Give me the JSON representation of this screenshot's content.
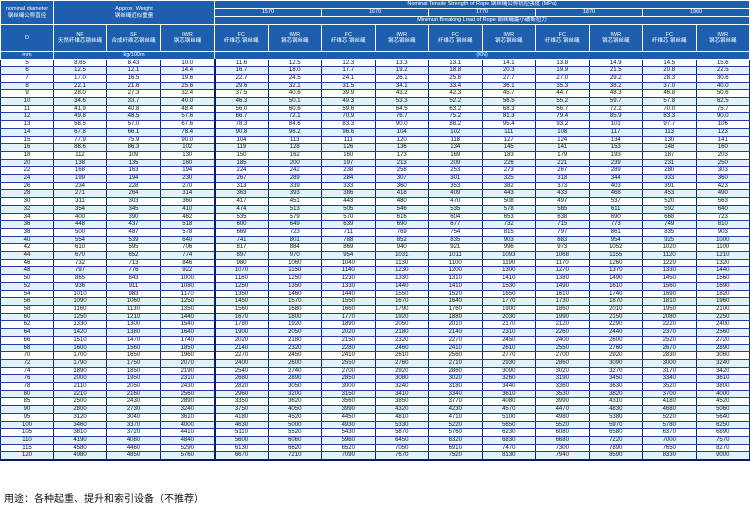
{
  "header": {
    "diameter": {
      "en": "nominal diameter",
      "cn": "钢丝绳公称直径",
      "symbol": "D",
      "unit": "mm"
    },
    "weight": {
      "en": "Approx. Weight",
      "cn": "钢丝绳近似重量",
      "unit": "kg/100m",
      "cols": [
        {
          "code": "NF",
          "cn": "天然纤维芯钢丝绳"
        },
        {
          "code": "SF",
          "cn": "合成纤维芯钢丝绳"
        },
        {
          "code": "IWR",
          "cn": "钢芯钢丝绳"
        }
      ]
    },
    "strength": {
      "title": "Nominal Tensile Strength of Rope 钢丝绳公称抗拉强度 (MPa)",
      "grades": [
        "1570",
        "1670",
        "1770",
        "1870",
        "1960"
      ],
      "load_title": "Minimun Breaking Load of Rope 钢丝绳最小破断拉力",
      "unit": "(KN)",
      "fc": {
        "code": "FC",
        "cn": "纤维芯 钢丝绳"
      },
      "iwr": {
        "code": "IWR",
        "cn": "钢芯钢丝绳"
      }
    }
  },
  "colors": {
    "header_bg": "#1d5fae",
    "row_alt": "#e3f1fb",
    "grid": "#0a2a8a"
  },
  "rows": [
    [
      "5",
      "8.65",
      "8.43",
      "10.0",
      "11.6",
      "12.5",
      "12.3",
      "13.3",
      "13.1",
      "14.1",
      "13.8",
      "14.9",
      "14.5",
      "15.6"
    ],
    [
      "6",
      "12.5",
      "12.1",
      "14.4",
      "16.7",
      "18.0",
      "17.7",
      "19.2",
      "18.8",
      "20.3",
      "19.9",
      "21.5",
      "20.8",
      "22.5"
    ],
    [
      "7",
      "17.0",
      "16.5",
      "19.6",
      "22.7",
      "24.5",
      "24.1",
      "26.1",
      "25.6",
      "27.7",
      "27.0",
      "29.2",
      "28.3",
      "30.6"
    ],
    [
      "8",
      "22.1",
      "21.6",
      "25.6",
      "29.6",
      "32.1",
      "31.5",
      "34.1",
      "33.4",
      "36.1",
      "35.3",
      "38.2",
      "37.0",
      "40.0"
    ],
    [
      "9",
      "28.0",
      "27.3",
      "32.4",
      "37.5",
      "40.6",
      "39.9",
      "43.2",
      "42.3",
      "45.7",
      "44.7",
      "48.3",
      "46.8",
      "50.6"
    ],
    [
      "10",
      "34.6",
      "33.7",
      "40.0",
      "46.3",
      "50.1",
      "49.3",
      "53.3",
      "52.2",
      "56.5",
      "55.2",
      "59.7",
      "57.8",
      "62.5"
    ],
    [
      "11",
      "41.9",
      "40.8",
      "48.4",
      "56.0",
      "60.6",
      "59.6",
      "64.5",
      "63.2",
      "68.3",
      "66.7",
      "72.2",
      "70.0",
      "75.7"
    ],
    [
      "12",
      "49.8",
      "48.5",
      "57.6",
      "66.7",
      "72.1",
      "70.9",
      "76.7",
      "75.2",
      "81.3",
      "79.4",
      "85.9",
      "83.3",
      "90.0"
    ],
    [
      "13",
      "58.5",
      "57.0",
      "67.6",
      "78.3",
      "84.6",
      "83.3",
      "90.0",
      "88.2",
      "95.4",
      "93.2",
      "101",
      "97.7",
      "106"
    ],
    [
      "14",
      "67.8",
      "66.1",
      "78.4",
      "90.8",
      "98.2",
      "96.6",
      "104",
      "102",
      "111",
      "108",
      "117",
      "113",
      "123"
    ],
    [
      "15",
      "77.9",
      "75.9",
      "90.0",
      "104",
      "113",
      "111",
      "120",
      "118",
      "127",
      "124",
      "134",
      "130",
      "141"
    ],
    [
      "16",
      "88.6",
      "86.3",
      "102",
      "119",
      "128",
      "126",
      "136",
      "134",
      "145",
      "141",
      "153",
      "148",
      "160"
    ],
    [
      "18",
      "112",
      "109",
      "130",
      "150",
      "162",
      "160",
      "173",
      "169",
      "183",
      "179",
      "193",
      "187",
      "203"
    ],
    [
      "20",
      "138",
      "135",
      "160",
      "185",
      "200",
      "197",
      "213",
      "209",
      "226",
      "221",
      "239",
      "231",
      "250"
    ],
    [
      "22",
      "168",
      "163",
      "194",
      "224",
      "242",
      "238",
      "258",
      "253",
      "273",
      "267",
      "289",
      "280",
      "303"
    ],
    [
      "24",
      "199",
      "194",
      "230",
      "267",
      "289",
      "284",
      "307",
      "301",
      "325",
      "318",
      "344",
      "333",
      "360"
    ],
    [
      "26",
      "234",
      "228",
      "270",
      "313",
      "339",
      "333",
      "360",
      "353",
      "382",
      "373",
      "403",
      "391",
      "423"
    ],
    [
      "28",
      "271",
      "264",
      "314",
      "363",
      "393",
      "386",
      "418",
      "409",
      "443",
      "433",
      "468",
      "453",
      "490"
    ],
    [
      "30",
      "311",
      "303",
      "360",
      "417",
      "451",
      "443",
      "480",
      "470",
      "508",
      "497",
      "537",
      "520",
      "563"
    ],
    [
      "32",
      "354",
      "345",
      "410",
      "474",
      "513",
      "505",
      "546",
      "535",
      "578",
      "565",
      "611",
      "592",
      "640"
    ],
    [
      "34",
      "400",
      "390",
      "462",
      "535",
      "579",
      "570",
      "616",
      "604",
      "653",
      "638",
      "690",
      "668",
      "723"
    ],
    [
      "36",
      "448",
      "437",
      "518",
      "600",
      "649",
      "639",
      "690",
      "677",
      "732",
      "715",
      "773",
      "749",
      "810"
    ],
    [
      "38",
      "500",
      "487",
      "578",
      "669",
      "723",
      "711",
      "769",
      "754",
      "815",
      "797",
      "861",
      "835",
      "903"
    ],
    [
      "40",
      "554",
      "539",
      "640",
      "741",
      "801",
      "788",
      "852",
      "835",
      "903",
      "883",
      "954",
      "925",
      "1000"
    ],
    [
      "42",
      "610",
      "595",
      "706",
      "817",
      "884",
      "869",
      "940",
      "921",
      "996",
      "973",
      "1052",
      "1020",
      "1100"
    ],
    [
      "44",
      "670",
      "652",
      "774",
      "897",
      "970",
      "954",
      "1031",
      "1011",
      "1093",
      "1068",
      "1155",
      "1120",
      "1210"
    ],
    [
      "46",
      "732",
      "713",
      "846",
      "980",
      "1060",
      "1040",
      "1130",
      "1100",
      "1190",
      "1170",
      "1260",
      "1220",
      "1320"
    ],
    [
      "48",
      "797",
      "776",
      "922",
      "1070",
      "1150",
      "1140",
      "1230",
      "1200",
      "1300",
      "1270",
      "1370",
      "1330",
      "1440"
    ],
    [
      "50",
      "865",
      "843",
      "1000",
      "1160",
      "1250",
      "1230",
      "1330",
      "1310",
      "1410",
      "1380",
      "1490",
      "1450",
      "1560"
    ],
    [
      "52",
      "936",
      "911",
      "1080",
      "1250",
      "1350",
      "1330",
      "1440",
      "1410",
      "1530",
      "1490",
      "1610",
      "1560",
      "1690"
    ],
    [
      "54",
      "1010",
      "983",
      "1170",
      "1350",
      "1460",
      "1440",
      "1550",
      "1520",
      "1650",
      "1610",
      "1740",
      "1690",
      "1820"
    ],
    [
      "56",
      "1090",
      "1060",
      "1250",
      "1450",
      "1570",
      "1550",
      "1670",
      "1640",
      "1770",
      "1730",
      "1870",
      "1810",
      "1960"
    ],
    [
      "58",
      "1160",
      "1130",
      "1350",
      "1560",
      "1680",
      "1660",
      "1790",
      "1760",
      "1900",
      "1860",
      "2010",
      "1950",
      "2100"
    ],
    [
      "60",
      "1250",
      "1210",
      "1440",
      "1670",
      "1800",
      "1770",
      "1920",
      "1880",
      "2030",
      "1990",
      "2150",
      "2080",
      "2250"
    ],
    [
      "62",
      "1330",
      "1300",
      "1540",
      "1780",
      "1920",
      "1890",
      "2050",
      "2010",
      "2170",
      "2120",
      "2290",
      "2220",
      "2400"
    ],
    [
      "64",
      "1420",
      "1380",
      "1640",
      "1900",
      "2050",
      "2020",
      "2180",
      "2140",
      "2310",
      "2260",
      "2440",
      "2370",
      "2560"
    ],
    [
      "66",
      "1510",
      "1470",
      "1740",
      "2020",
      "2180",
      "2150",
      "2320",
      "2270",
      "2450",
      "2400",
      "2600",
      "2520",
      "2720"
    ],
    [
      "68",
      "1600",
      "1560",
      "1850",
      "2140",
      "2320",
      "2280",
      "2460",
      "2410",
      "2610",
      "2550",
      "2760",
      "2670",
      "2890"
    ],
    [
      "70",
      "1700",
      "1650",
      "1960",
      "2270",
      "2450",
      "2410",
      "2610",
      "2560",
      "2770",
      "2700",
      "2920",
      "2830",
      "3060"
    ],
    [
      "72",
      "1790",
      "1750",
      "2070",
      "2400",
      "2600",
      "2550",
      "2760",
      "2710",
      "2930",
      "2860",
      "3090",
      "3000",
      "3240"
    ],
    [
      "74",
      "1890",
      "1850",
      "2190",
      "2540",
      "2740",
      "2700",
      "2920",
      "2860",
      "3090",
      "3020",
      "3270",
      "3170",
      "3420"
    ],
    [
      "76",
      "2000",
      "1950",
      "2310",
      "2680",
      "2890",
      "2850",
      "3080",
      "3020",
      "3260",
      "3190",
      "3450",
      "3340",
      "3610"
    ],
    [
      "78",
      "2110",
      "2050",
      "2430",
      "2820",
      "3050",
      "3000",
      "3240",
      "3180",
      "3440",
      "3360",
      "3630",
      "3520",
      "3800"
    ],
    [
      "80",
      "2210",
      "2160",
      "2560",
      "2960",
      "3200",
      "3150",
      "3410",
      "3340",
      "3610",
      "3530",
      "3820",
      "3700",
      "4000"
    ],
    [
      "85",
      "2500",
      "2430",
      "2890",
      "3350",
      "3620",
      "3560",
      "3850",
      "3770",
      "4080",
      "3990",
      "4310",
      "4180",
      "4520"
    ],
    [
      "90",
      "2800",
      "2730",
      "3240",
      "3750",
      "4050",
      "3990",
      "4320",
      "4230",
      "4570",
      "4470",
      "4830",
      "4680",
      "5060"
    ],
    [
      "95",
      "3120",
      "3040",
      "3610",
      "4180",
      "4520",
      "4450",
      "4810",
      "4710",
      "5100",
      "4980",
      "5380",
      "5220",
      "5640"
    ],
    [
      "100",
      "3460",
      "3370",
      "4000",
      "4630",
      "5000",
      "4930",
      "5330",
      "5220",
      "5650",
      "5520",
      "5970",
      "5780",
      "6250"
    ],
    [
      "105",
      "3810",
      "3720",
      "4410",
      "5110",
      "5520",
      "5430",
      "5870",
      "5760",
      "6230",
      "6080",
      "6580",
      "6370",
      "6890"
    ],
    [
      "110",
      "4190",
      "4080",
      "4840",
      "5600",
      "6060",
      "5960",
      "6450",
      "6320",
      "6830",
      "6680",
      "7220",
      "7000",
      "7570"
    ],
    [
      "115",
      "4580",
      "4460",
      "5290",
      "6130",
      "6620",
      "6520",
      "7050",
      "6910",
      "7470",
      "7300",
      "7890",
      "7650",
      "8270"
    ],
    [
      "120",
      "4980",
      "4850",
      "5760",
      "6670",
      "7210",
      "7090",
      "7670",
      "7520",
      "8130",
      "7940",
      "8590",
      "8330",
      "9000"
    ]
  ],
  "footer": "用途：各种起重、提升和索引设备（不推荐）"
}
